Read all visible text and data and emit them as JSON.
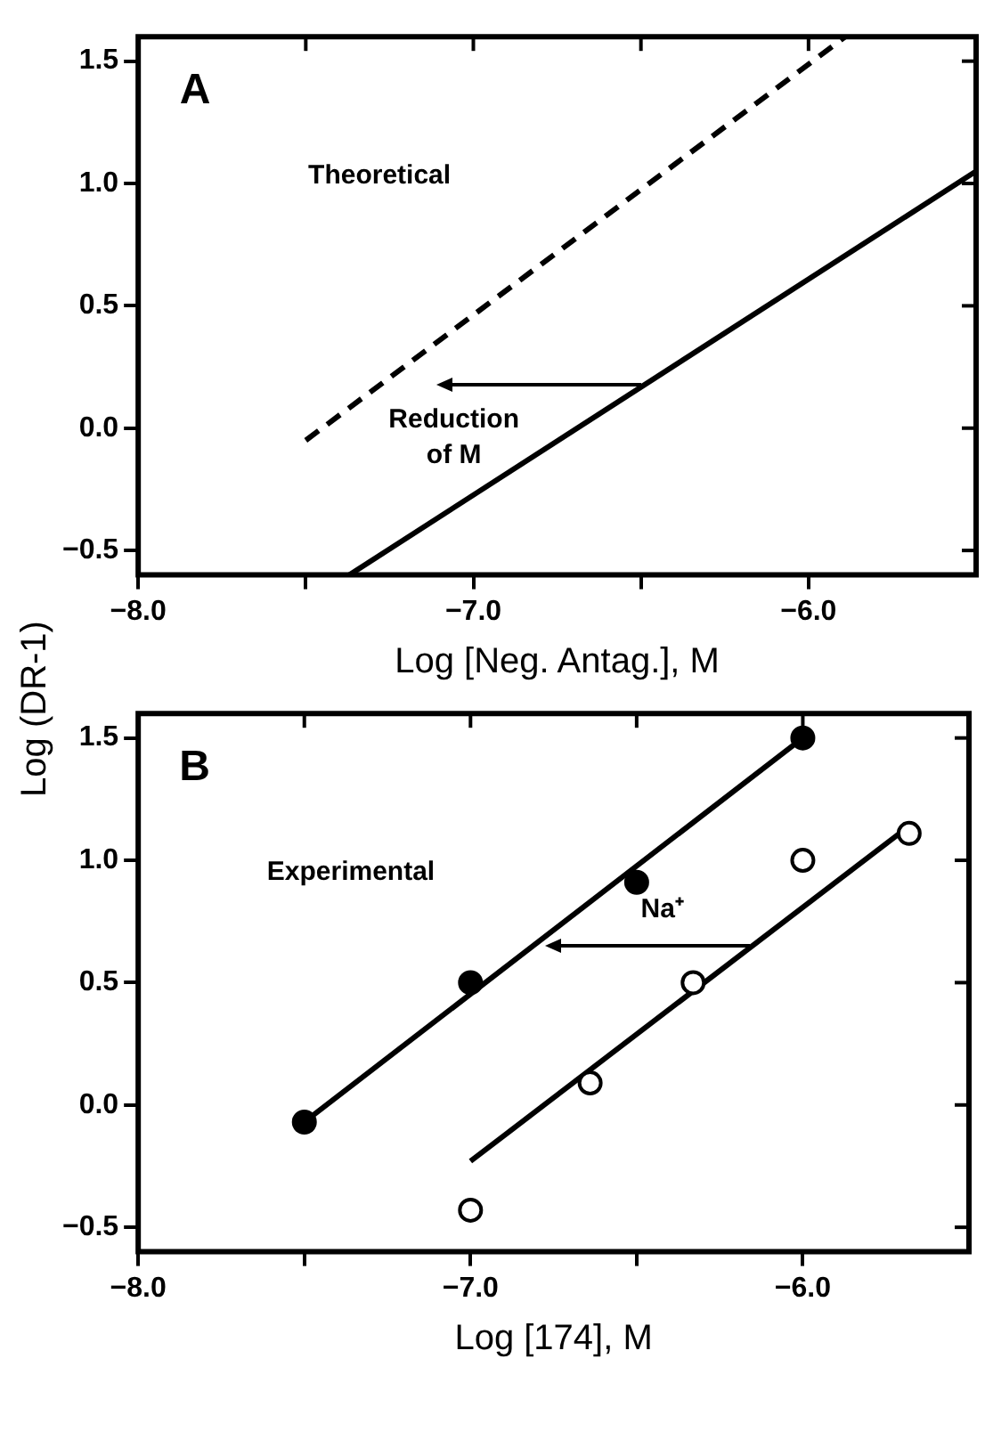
{
  "chart_data": [
    {
      "type": "line",
      "ylabel": "Log (DR-1)",
      "xlabel": "Log [Neg. Antag.], M",
      "xlim": [
        -8.0,
        -5.5
      ],
      "ylim": [
        -0.6,
        1.6
      ],
      "xticks": [
        {
          "value": -8,
          "label": "−8.0"
        },
        {
          "value": -7.5,
          "label": null
        },
        {
          "value": -7,
          "label": "−7.0"
        },
        {
          "value": -6.5,
          "label": null
        },
        {
          "value": -6,
          "label": "−6.0"
        }
      ],
      "yticks": [
        {
          "value": -0.5,
          "label": "−0.5"
        },
        {
          "value": 0,
          "label": "0.0"
        },
        {
          "value": 0.5,
          "label": "0.5"
        },
        {
          "value": 1,
          "label": "1.0"
        },
        {
          "value": 1.5,
          "label": "1.5"
        }
      ],
      "grid": false,
      "legend": false,
      "marker": "none",
      "series": [
        {
          "color": "#000000",
          "line_style": "dashed",
          "x": [
            -7.5,
            -5.89
          ],
          "values": [
            -0.05,
            1.6
          ]
        },
        {
          "color": "#000000",
          "line_style": "solid",
          "x": [
            -7.37,
            -5.5
          ],
          "values": [
            -0.6,
            1.05
          ]
        }
      ],
      "annotations": [
        "A",
        "Theoretical",
        {
          "text": "Reduction of M",
          "x": -6.5,
          "y": 0.18
        }
      ]
    },
    {
      "type": "scatter",
      "xlabel": "Log [174], M",
      "xlim": [
        -8.0,
        -5.5
      ],
      "ylim": [
        -0.6,
        1.6
      ],
      "xticks": [
        {
          "value": -8,
          "label": "−8.0"
        },
        {
          "value": -7.5,
          "label": null
        },
        {
          "value": -7,
          "label": "−7.0"
        },
        {
          "value": -6.5,
          "label": null
        },
        {
          "value": -6,
          "label": "−6.0"
        }
      ],
      "yticks": [
        {
          "value": -0.5,
          "label": "−0.5"
        },
        {
          "value": 0,
          "label": "0.0"
        },
        {
          "value": 0.5,
          "label": "0.5"
        },
        {
          "value": 1,
          "label": "1.0"
        },
        {
          "value": 1.5,
          "label": "1.5"
        }
      ],
      "grid": false,
      "legend": false,
      "series": [
        {
          "color": "#000000",
          "marker": "circle",
          "x": [
            -7.5,
            -7.0,
            -6.5,
            -6.0
          ],
          "values": [
            -0.07,
            0.5,
            0.91,
            1.5
          ]
        },
        {
          "color": "#ffffff",
          "marker": "circle",
          "x": [
            -7.0,
            -6.64,
            -6.33,
            -6.0,
            -5.68
          ],
          "values": [
            -0.43,
            0.09,
            0.5,
            1.0,
            1.11
          ]
        },
        {
          "type": "line",
          "color": "#000000",
          "line_style": "solid",
          "marker": "none",
          "x": [
            -7.5,
            -6.0
          ],
          "values": [
            -0.07,
            1.5
          ]
        },
        {
          "type": "line",
          "color": "#000000",
          "line_style": "solid",
          "marker": "none",
          "x": [
            -7.0,
            -5.68
          ],
          "values": [
            -0.23,
            1.14
          ]
        }
      ],
      "annotations": [
        "B",
        "Experimental",
        {
          "text": "Na⁺",
          "x": -6.16,
          "y": 0.65
        }
      ]
    }
  ]
}
